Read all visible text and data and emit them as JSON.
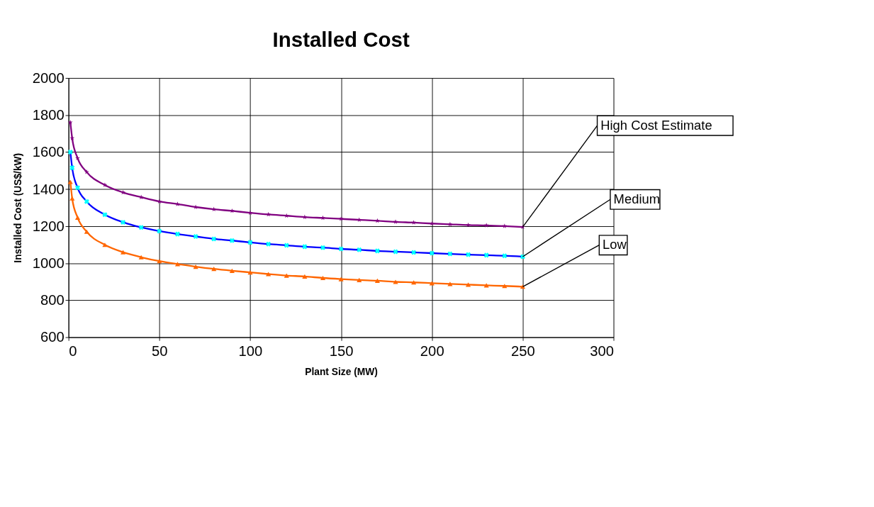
{
  "chart_data": {
    "type": "line",
    "title": "Installed Cost",
    "xlabel": "Plant Size (MW)",
    "ylabel": "Installed Cost (US$/kW)",
    "x": [
      1,
      2,
      5,
      10,
      20,
      30,
      40,
      50,
      60,
      70,
      80,
      90,
      100,
      110,
      120,
      130,
      140,
      150,
      160,
      170,
      180,
      190,
      200,
      210,
      220,
      230,
      240,
      250
    ],
    "series": [
      {
        "name": "High Cost Estimate",
        "color": "#800080",
        "marker": "star",
        "values": [
          1760,
          1675,
          1567,
          1492,
          1422,
          1382,
          1356,
          1333,
          1319,
          1303,
          1291,
          1282,
          1272,
          1263,
          1256,
          1249,
          1244,
          1239,
          1234,
          1229,
          1223,
          1219,
          1214,
          1210,
          1206,
          1204,
          1200,
          1195
        ]
      },
      {
        "name": "Medium",
        "color": "#0000ff",
        "marker": "cross",
        "values": [
          1600,
          1515,
          1407,
          1333,
          1262,
          1221,
          1193,
          1173,
          1157,
          1144,
          1131,
          1122,
          1112,
          1103,
          1096,
          1089,
          1084,
          1077,
          1072,
          1066,
          1062,
          1058,
          1054,
          1050,
          1046,
          1043,
          1040,
          1035
        ]
      },
      {
        "name": "Low",
        "color": "#ff6600",
        "marker": "triangle",
        "values": [
          1439,
          1350,
          1246,
          1170,
          1099,
          1059,
          1032,
          1011,
          995,
          981,
          969,
          959,
          950,
          941,
          933,
          928,
          920,
          914,
          909,
          905,
          899,
          896,
          892,
          888,
          884,
          880,
          877,
          873
        ]
      }
    ],
    "xlim": [
      0,
      300
    ],
    "xticks": [
      0,
      50,
      100,
      150,
      200,
      250,
      300
    ],
    "ylim": [
      600,
      2000
    ],
    "yticks": [
      600,
      800,
      {
        "value": 1000,
        "label": "1000"
      },
      {
        "value": 1200,
        "label": "1200"
      },
      {
        "value": 1400,
        "label": "1400"
      },
      {
        "value": 1600,
        "label": "1600"
      },
      {
        "value": 1800,
        "label": "1800"
      },
      {
        "value": 2000,
        "label": "2000"
      }
    ],
    "grid": true,
    "legend": false,
    "line_style": "solid"
  }
}
